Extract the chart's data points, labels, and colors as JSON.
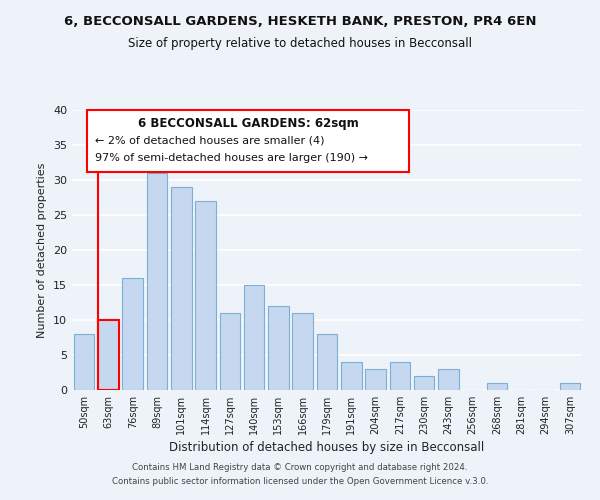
{
  "title": "6, BECCONSALL GARDENS, HESKETH BANK, PRESTON, PR4 6EN",
  "subtitle": "Size of property relative to detached houses in Becconsall",
  "xlabel": "Distribution of detached houses by size in Becconsall",
  "ylabel": "Number of detached properties",
  "categories": [
    "50sqm",
    "63sqm",
    "76sqm",
    "89sqm",
    "101sqm",
    "114sqm",
    "127sqm",
    "140sqm",
    "153sqm",
    "166sqm",
    "179sqm",
    "191sqm",
    "204sqm",
    "217sqm",
    "230sqm",
    "243sqm",
    "256sqm",
    "268sqm",
    "281sqm",
    "294sqm",
    "307sqm"
  ],
  "values": [
    8,
    10,
    16,
    31,
    29,
    27,
    11,
    15,
    12,
    11,
    8,
    4,
    3,
    4,
    2,
    3,
    0,
    1,
    0,
    0,
    1
  ],
  "bar_color": "#c5d8f0",
  "bar_edge_color": "#7bafd4",
  "highlight_bar_index": 1,
  "highlight_edge_color": "red",
  "annotation_title": "6 BECCONSALL GARDENS: 62sqm",
  "annotation_line1": "← 2% of detached houses are smaller (4)",
  "annotation_line2": "97% of semi-detached houses are larger (190) →",
  "ylim": [
    0,
    40
  ],
  "yticks": [
    0,
    5,
    10,
    15,
    20,
    25,
    30,
    35,
    40
  ],
  "footer1": "Contains HM Land Registry data © Crown copyright and database right 2024.",
  "footer2": "Contains public sector information licensed under the Open Government Licence v.3.0.",
  "bg_color": "#eef2f9",
  "grid_color": "white",
  "vline_color": "red"
}
